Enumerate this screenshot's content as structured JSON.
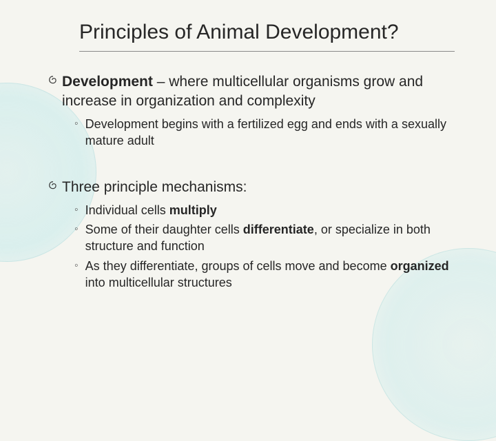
{
  "background_color": "#f5f5f0",
  "circle_color": "rgba(200,235,235,0.5)",
  "title": "Principles of Animal Development?",
  "title_fontsize": 30,
  "body_fontsize": 21,
  "sub_fontsize": 18,
  "text_color": "#262626",
  "bullets": [
    {
      "lead_bold": "Development",
      "rest": " – where multicellular organisms grow and increase in organization and complexity",
      "subs": [
        {
          "text": "Development begins with a fertilized egg and ends with a sexually mature adult"
        }
      ]
    },
    {
      "lead_bold": "",
      "rest": "Three principle mechanisms:",
      "subs": [
        {
          "text_pre": "Individual cells ",
          "bold": "multiply",
          "text_post": ""
        },
        {
          "text_pre": "Some of their daughter cells ",
          "bold": "differentiate",
          "text_post": ", or specialize in both structure and function"
        },
        {
          "text_pre": "As they differentiate, groups of cells move and become ",
          "bold": "organized",
          "text_post": " into multicellular structures"
        }
      ]
    }
  ]
}
